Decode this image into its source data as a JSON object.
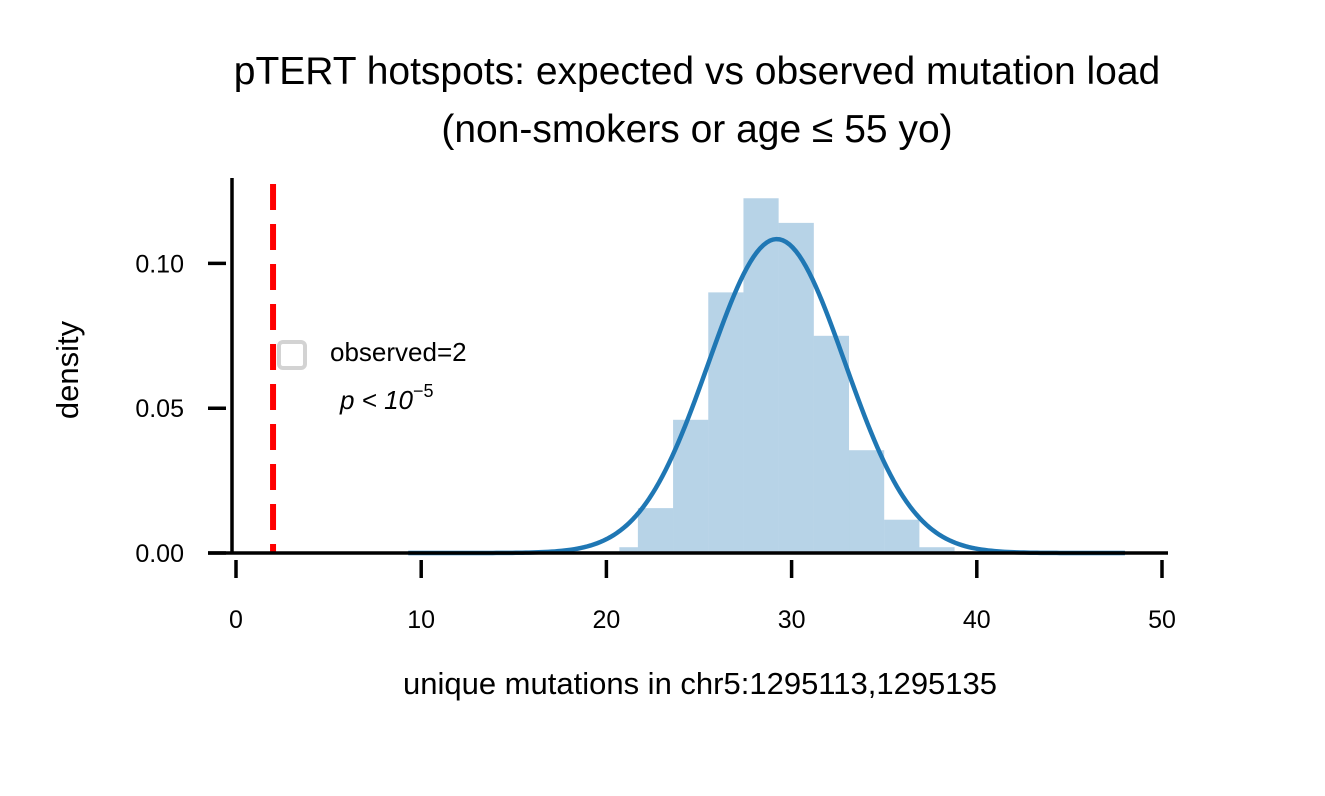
{
  "chart_data": {
    "type": "bar",
    "title": "pTERT hotspots: expected vs observed mutation load",
    "subtitle": "(non-smokers or age ≤ 55 yo)",
    "xlabel": "unique mutations in chr5:1295113,1295135",
    "ylabel": "density",
    "xlim": [
      -0.5,
      50.3
    ],
    "ylim": [
      0,
      0.1295
    ],
    "x_ticks": [
      0,
      10,
      20,
      30,
      40,
      50
    ],
    "x_tick_labels": [
      "0",
      "10",
      "20",
      "30",
      "40",
      "50"
    ],
    "y_ticks": [
      0.0,
      0.05,
      0.1
    ],
    "y_tick_labels": [
      "0.00",
      "0.05",
      "0.10"
    ],
    "histogram": {
      "bin_edges": [
        9.3,
        11.2,
        13.1,
        15.0,
        16.9,
        18.8,
        20.7,
        21.7,
        23.6,
        25.5,
        27.4,
        29.3,
        31.2,
        33.1,
        35.0,
        36.9,
        38.8,
        40.7,
        42.6,
        44.5,
        46.4,
        48.0
      ],
      "densities": [
        0.0006,
        0.0006,
        0.0006,
        0.0006,
        0.0006,
        0.0006,
        0.002,
        0.0155,
        0.046,
        0.09,
        0.1225,
        0.114,
        0.075,
        0.0355,
        0.0115,
        0.002,
        0.0006,
        0.0006,
        0.0006,
        0.0006,
        0.0006
      ],
      "color": "#1f77b4",
      "alpha": 0.32
    },
    "kde": {
      "x_range": [
        9.3,
        48.0
      ],
      "mean": 29.2,
      "sd": 3.68,
      "color": "#1f77b4"
    },
    "observed_line": {
      "x": 2,
      "color": "#ff0000",
      "style": "dashed"
    },
    "legend": {
      "label": "observed=2",
      "annotation_prefix": "p < 10",
      "annotation_exponent": "−5",
      "placement": "center-left"
    },
    "grid": false
  }
}
